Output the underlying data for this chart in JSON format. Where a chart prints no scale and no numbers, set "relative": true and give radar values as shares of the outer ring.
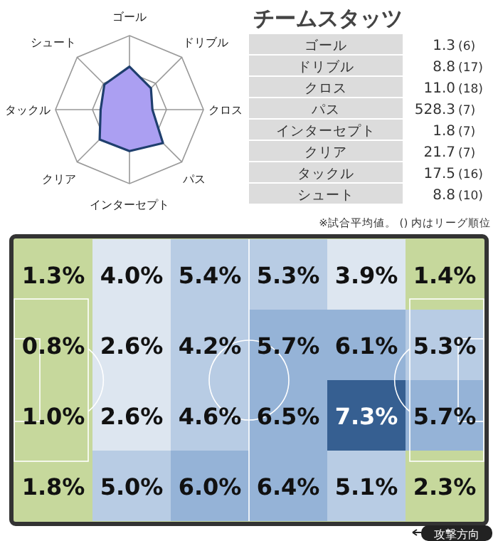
{
  "chart_data": [
    {
      "type": "radar",
      "relative": true,
      "grid": true,
      "categories": [
        "ゴール",
        "ドリブル",
        "クロス",
        "パス",
        "インターセプト",
        "クリア",
        "タックル",
        "シュート"
      ],
      "series": [
        {
          "color": "#ab9ff2",
          "values": [
            0.58,
            0.41,
            0.31,
            0.64,
            0.56,
            0.57,
            0.39,
            0.48
          ]
        }
      ]
    },
    {
      "type": "other",
      "title": "チームスタッツ",
      "categories": [
        "ゴール",
        "ドリブル",
        "クロス",
        "パス",
        "インターセプト",
        "クリア",
        "タックル",
        "シュート"
      ],
      "series": [
        {
          "values": [
            1.3,
            8.8,
            11.0,
            528.3,
            1.8,
            21.7,
            17.5,
            8.8
          ],
          "value_labels": [
            "1.3",
            "8.8",
            "11.0",
            "528.3",
            "1.8",
            "21.7",
            "17.5",
            "8.8"
          ]
        },
        {
          "values": [
            6,
            17,
            18,
            7,
            7,
            7,
            16,
            10
          ],
          "value_labels": [
            "(6)",
            "(17)",
            "(18)",
            "(7)",
            "(7)",
            "(7)",
            "(16)",
            "(10)"
          ]
        }
      ],
      "annotations": [
        "※試合平均値。 () 内はリーグ順位"
      ]
    },
    {
      "type": "heatmap",
      "categories": [
        null,
        null,
        null,
        null,
        null,
        null
      ],
      "y_categories": [
        null,
        null,
        null,
        null
      ],
      "cells": [
        [
          1.3,
          4.0,
          5.4,
          5.3,
          3.9,
          1.4
        ],
        [
          0.8,
          2.6,
          4.2,
          5.7,
          6.1,
          5.3
        ],
        [
          1.0,
          2.6,
          4.6,
          6.5,
          7.3,
          5.7
        ],
        [
          1.8,
          5.0,
          6.0,
          6.4,
          5.1,
          2.3
        ]
      ],
      "cell_labels": [
        [
          "1.3%",
          "4.0%",
          "5.4%",
          "5.3%",
          "3.9%",
          "1.4%"
        ],
        [
          "0.8%",
          "2.6%",
          "4.2%",
          "5.7%",
          "6.1%",
          "5.3%"
        ],
        [
          "1.0%",
          "2.6%",
          "4.6%",
          "6.5%",
          "7.3%",
          "5.7%"
        ],
        [
          "1.8%",
          "5.0%",
          "6.0%",
          "6.4%",
          "5.1%",
          "2.3%"
        ]
      ],
      "annotations": [
        "攻撃方向"
      ]
    }
  ]
}
